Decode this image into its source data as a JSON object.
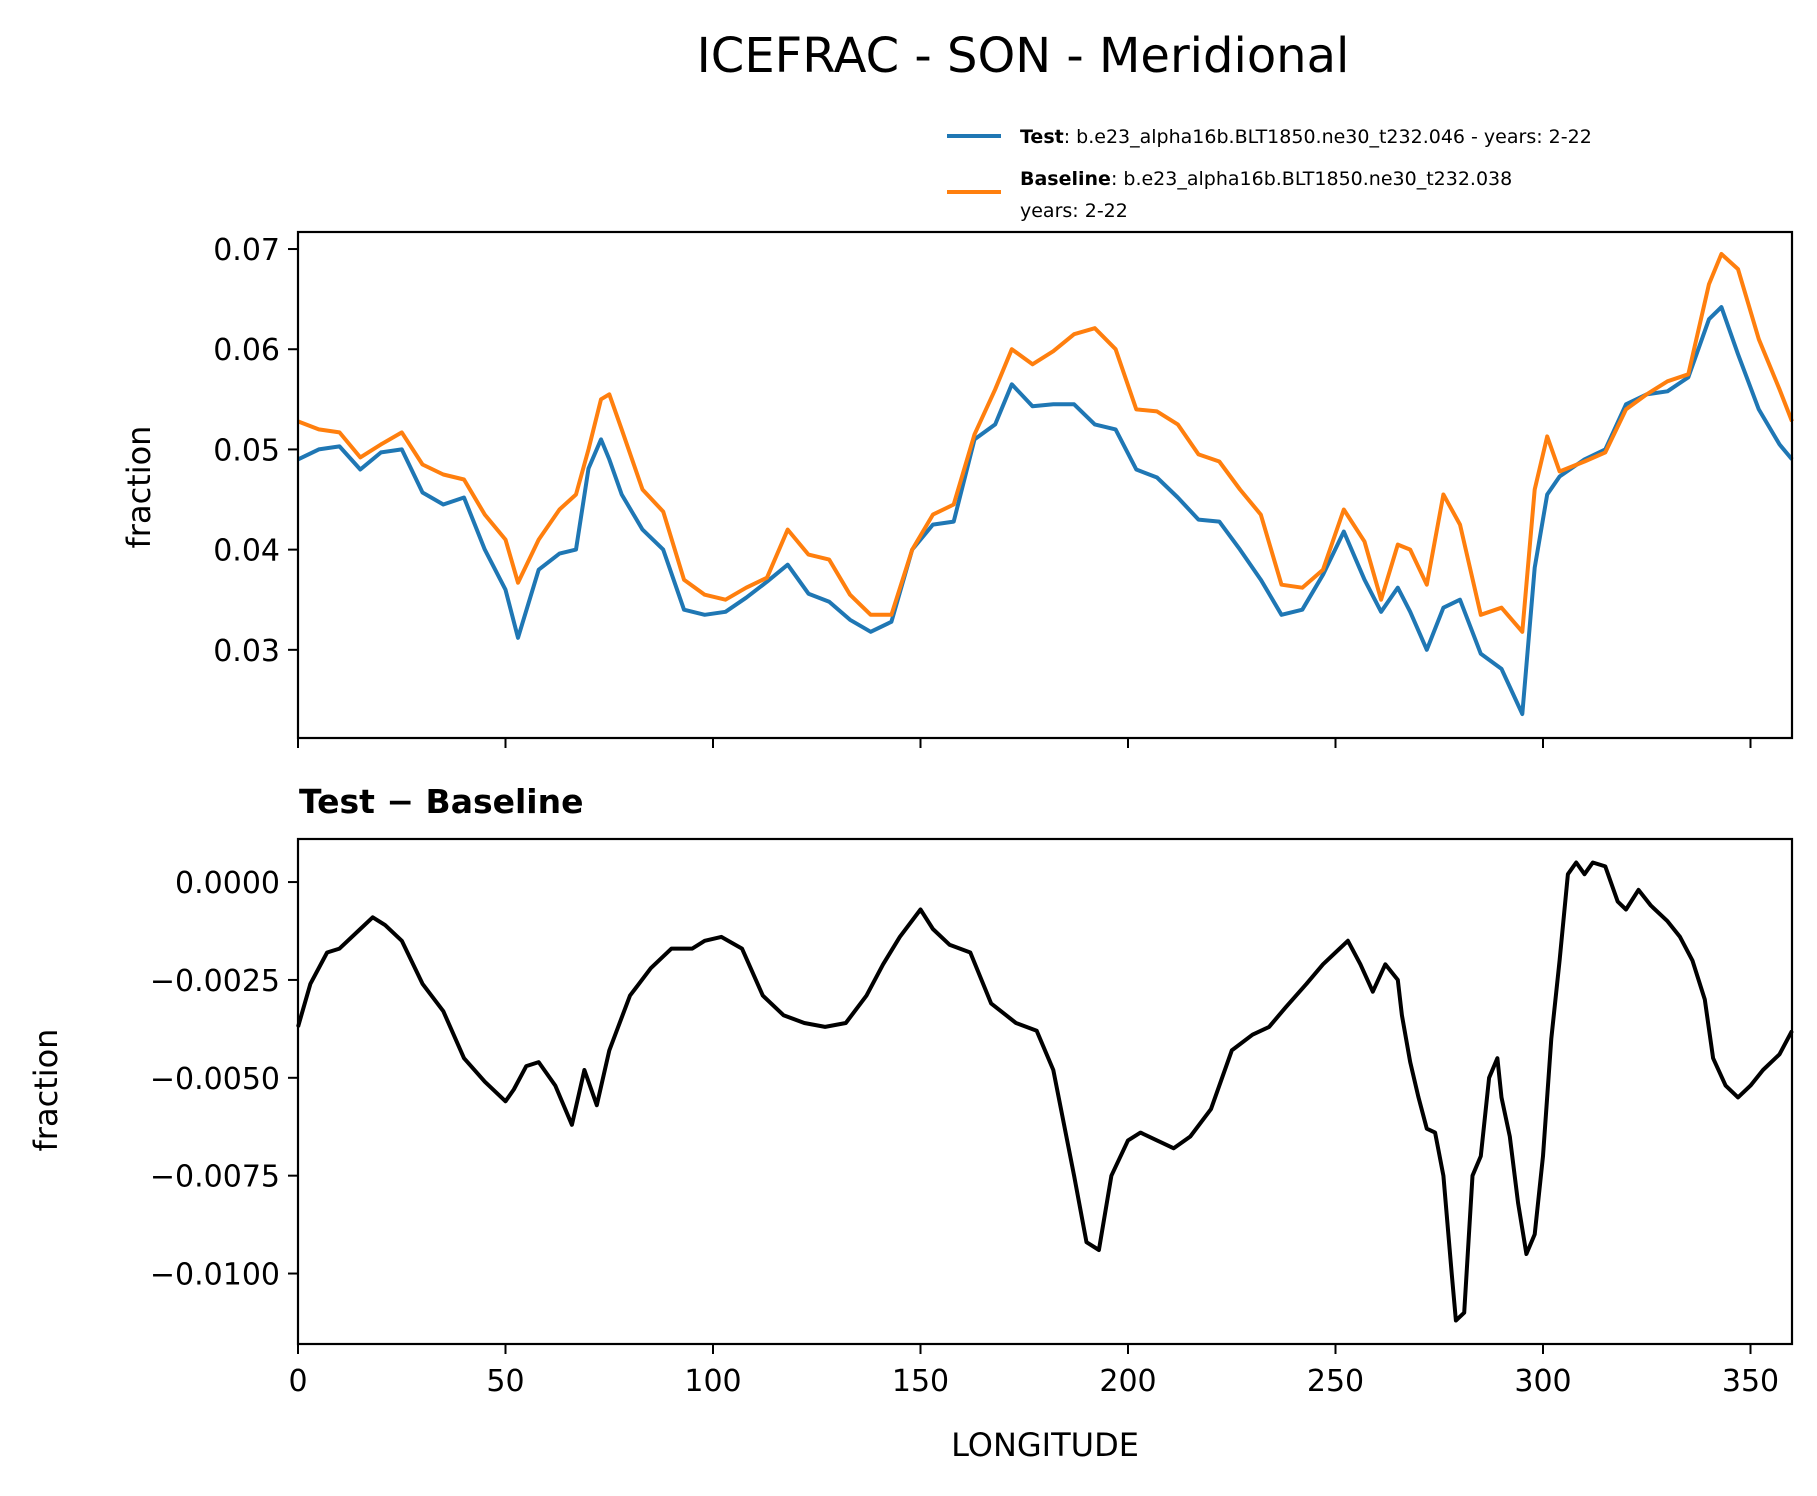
{
  "chart_data": [
    {
      "type": "line",
      "title": "ICEFRAC - SON - Meridional",
      "xlabel": "",
      "ylabel": "fraction",
      "xlim": [
        0,
        360
      ],
      "ylim": [
        0.0212,
        0.0717
      ],
      "xticks": [
        0,
        50,
        100,
        150,
        200,
        250,
        300,
        350
      ],
      "yticks": [
        0.03,
        0.04,
        0.05,
        0.06,
        0.07
      ],
      "ytick_labels": [
        "0.03",
        "0.04",
        "0.05",
        "0.06",
        "0.07"
      ],
      "legend": {
        "placement": "above-top-right",
        "entries": [
          {
            "name": "Test",
            "detail": ": b.e23_alpha16b.BLT1850.ne30_t232.046 - years: 2-22",
            "detail2": "",
            "color": "#1f77b4"
          },
          {
            "name": "Baseline",
            "detail": ": b.e23_alpha16b.BLT1850.ne30_t232.038",
            "detail2": "years: 2-22",
            "color": "#ff7f0e"
          }
        ]
      },
      "series": [
        {
          "name": "Test",
          "color": "#1f77b4",
          "x": [
            0,
            5,
            10,
            15,
            20,
            25,
            30,
            35,
            40,
            45,
            50,
            53,
            58,
            63,
            67,
            70,
            73,
            75,
            78,
            83,
            88,
            93,
            98,
            103,
            108,
            113,
            118,
            123,
            128,
            133,
            138,
            143,
            148,
            153,
            158,
            163,
            168,
            172,
            177,
            182,
            187,
            192,
            197,
            202,
            207,
            212,
            217,
            222,
            227,
            232,
            237,
            242,
            247,
            252,
            257,
            261,
            265,
            268,
            272,
            276,
            280,
            285,
            290,
            295,
            298,
            301,
            304,
            310,
            315,
            320,
            325,
            330,
            335,
            340,
            343,
            347,
            352,
            357,
            360
          ],
          "values": [
            0.049,
            0.05,
            0.0503,
            0.048,
            0.0497,
            0.05,
            0.0457,
            0.0445,
            0.0452,
            0.04,
            0.036,
            0.0312,
            0.038,
            0.0396,
            0.04,
            0.0481,
            0.051,
            0.049,
            0.0455,
            0.042,
            0.04,
            0.034,
            0.0335,
            0.0338,
            0.0352,
            0.0368,
            0.0385,
            0.0356,
            0.0348,
            0.033,
            0.0318,
            0.0328,
            0.04,
            0.0425,
            0.0428,
            0.051,
            0.0525,
            0.0565,
            0.0543,
            0.0545,
            0.0545,
            0.0525,
            0.052,
            0.048,
            0.0472,
            0.0452,
            0.043,
            0.0428,
            0.04,
            0.037,
            0.0335,
            0.034,
            0.0375,
            0.0418,
            0.037,
            0.0338,
            0.0362,
            0.0338,
            0.03,
            0.0342,
            0.035,
            0.0296,
            0.0281,
            0.0236,
            0.0382,
            0.0455,
            0.0473,
            0.049,
            0.05,
            0.0545,
            0.0555,
            0.0558,
            0.0572,
            0.063,
            0.0642,
            0.0595,
            0.054,
            0.0505,
            0.049
          ]
        },
        {
          "name": "Baseline",
          "color": "#ff7f0e",
          "x": [
            0,
            5,
            10,
            15,
            20,
            25,
            30,
            35,
            40,
            45,
            50,
            53,
            58,
            63,
            67,
            70,
            73,
            75,
            78,
            83,
            88,
            93,
            98,
            103,
            108,
            113,
            118,
            123,
            128,
            133,
            138,
            143,
            148,
            153,
            158,
            163,
            168,
            172,
            177,
            182,
            187,
            192,
            197,
            202,
            207,
            212,
            217,
            222,
            227,
            232,
            237,
            242,
            247,
            252,
            257,
            261,
            265,
            268,
            272,
            276,
            280,
            285,
            290,
            295,
            298,
            301,
            304,
            310,
            315,
            320,
            325,
            330,
            335,
            340,
            343,
            347,
            352,
            357,
            360
          ],
          "values": [
            0.0528,
            0.052,
            0.0517,
            0.0492,
            0.0505,
            0.0517,
            0.0485,
            0.0475,
            0.047,
            0.0435,
            0.041,
            0.0367,
            0.041,
            0.044,
            0.0455,
            0.05,
            0.055,
            0.0555,
            0.052,
            0.046,
            0.0438,
            0.037,
            0.0355,
            0.035,
            0.0362,
            0.0372,
            0.042,
            0.0395,
            0.039,
            0.0355,
            0.0335,
            0.0335,
            0.04,
            0.0435,
            0.0445,
            0.0515,
            0.056,
            0.06,
            0.0585,
            0.0598,
            0.0615,
            0.0621,
            0.06,
            0.054,
            0.0538,
            0.0525,
            0.0495,
            0.0488,
            0.046,
            0.0435,
            0.0365,
            0.0362,
            0.038,
            0.044,
            0.0408,
            0.035,
            0.0405,
            0.04,
            0.0365,
            0.0455,
            0.0425,
            0.0335,
            0.0342,
            0.0318,
            0.046,
            0.0513,
            0.0478,
            0.0488,
            0.0497,
            0.054,
            0.0555,
            0.0568,
            0.0575,
            0.0665,
            0.0695,
            0.068,
            0.061,
            0.056,
            0.0528
          ]
        }
      ]
    },
    {
      "type": "line",
      "title": "Test − Baseline",
      "xlabel": "LONGITUDE",
      "ylabel": "fraction",
      "xlim": [
        0,
        360
      ],
      "ylim": [
        -0.0118,
        0.0011
      ],
      "xticks": [
        0,
        50,
        100,
        150,
        200,
        250,
        300,
        350
      ],
      "xtick_labels": [
        "0",
        "50",
        "100",
        "150",
        "200",
        "250",
        "300",
        "350"
      ],
      "yticks": [
        0.0,
        -0.0025,
        -0.005,
        -0.0075,
        -0.01
      ],
      "ytick_labels": [
        "0.0000",
        "−0.0025",
        "−0.0050",
        "−0.0075",
        "−0.0100"
      ],
      "series": [
        {
          "name": "Test − Baseline",
          "color": "#000000",
          "x": [
            0,
            3,
            7,
            10,
            15,
            18,
            21,
            25,
            30,
            35,
            40,
            45,
            50,
            52,
            55,
            58,
            62,
            66,
            69,
            72,
            75,
            80,
            85,
            90,
            95,
            98,
            102,
            107,
            112,
            117,
            122,
            127,
            132,
            137,
            141,
            145,
            150,
            153,
            157,
            162,
            167,
            173,
            178,
            182,
            187,
            190,
            193,
            196,
            200,
            203,
            207,
            211,
            215,
            220,
            225,
            230,
            234,
            238,
            243,
            247,
            250,
            253,
            256,
            259,
            262,
            265,
            266,
            268,
            270,
            272,
            274,
            276,
            278,
            279,
            281,
            283,
            285,
            287,
            289,
            290,
            292,
            294,
            296,
            298,
            300,
            302,
            304,
            306,
            308,
            310,
            312,
            315,
            318,
            320,
            323,
            326,
            330,
            333,
            336,
            339,
            341,
            344,
            347,
            350,
            353,
            357,
            360
          ],
          "values": [
            -0.0037,
            -0.0026,
            -0.0018,
            -0.0017,
            -0.0012,
            -0.0009,
            -0.0011,
            -0.0015,
            -0.0026,
            -0.0033,
            -0.0045,
            -0.0051,
            -0.0056,
            -0.0053,
            -0.0047,
            -0.0046,
            -0.0052,
            -0.0062,
            -0.0048,
            -0.0057,
            -0.0043,
            -0.0029,
            -0.0022,
            -0.0017,
            -0.0017,
            -0.0015,
            -0.0014,
            -0.0017,
            -0.0029,
            -0.0034,
            -0.0036,
            -0.0037,
            -0.0036,
            -0.0029,
            -0.0021,
            -0.0014,
            -0.0007,
            -0.0012,
            -0.0016,
            -0.0018,
            -0.0031,
            -0.0036,
            -0.0038,
            -0.0048,
            -0.0075,
            -0.0092,
            -0.0094,
            -0.0075,
            -0.0066,
            -0.0064,
            -0.0066,
            -0.0068,
            -0.0065,
            -0.0058,
            -0.0043,
            -0.0039,
            -0.0037,
            -0.0032,
            -0.0026,
            -0.0021,
            -0.0018,
            -0.0015,
            -0.0021,
            -0.0028,
            -0.0021,
            -0.0025,
            -0.0034,
            -0.0046,
            -0.0055,
            -0.0063,
            -0.0064,
            -0.0075,
            -0.01,
            -0.0112,
            -0.011,
            -0.0075,
            -0.007,
            -0.005,
            -0.0045,
            -0.0055,
            -0.0065,
            -0.0082,
            -0.0095,
            -0.009,
            -0.007,
            -0.004,
            -0.002,
            0.0002,
            0.0005,
            0.0002,
            0.0005,
            0.0004,
            -0.0005,
            -0.0007,
            -0.0002,
            -0.0006,
            -0.001,
            -0.0014,
            -0.002,
            -0.003,
            -0.0045,
            -0.0052,
            -0.0055,
            -0.0052,
            -0.0048,
            -0.0044,
            -0.0038
          ]
        }
      ]
    }
  ]
}
